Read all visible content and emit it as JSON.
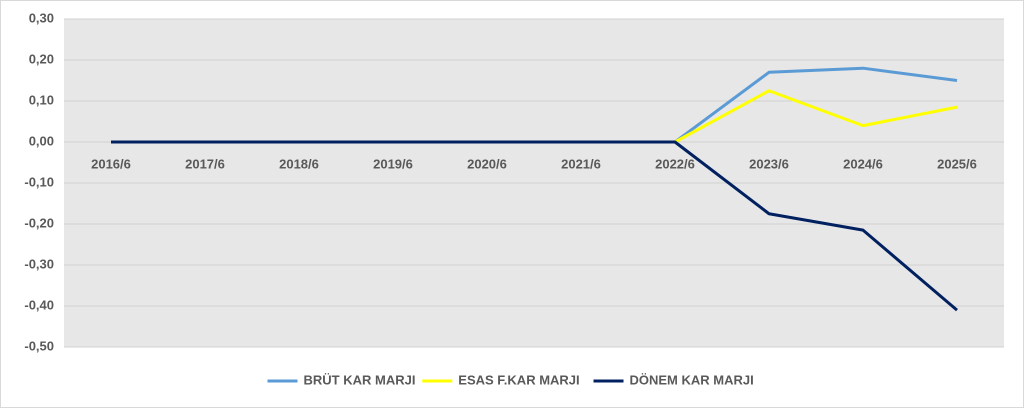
{
  "chart_data": {
    "type": "line",
    "categories": [
      "2016/6",
      "2017/6",
      "2018/6",
      "2019/6",
      "2020/6",
      "2021/6",
      "2022/6",
      "2023/6",
      "2024/6",
      "2025/6"
    ],
    "series": [
      {
        "name": "BRÜT KAR MARJI",
        "color": "#5b9bd5",
        "values": [
          0,
          0,
          0,
          0,
          0,
          0,
          0,
          0.17,
          0.18,
          0.15
        ]
      },
      {
        "name": "ESAS F.KAR MARJI",
        "color": "#ffff00",
        "values": [
          0,
          0,
          0,
          0,
          0,
          0,
          0,
          0.125,
          0.04,
          0.085
        ]
      },
      {
        "name": "DÖNEM KAR MARJI",
        "color": "#002060",
        "values": [
          0,
          0,
          0,
          0,
          0,
          0,
          0,
          -0.175,
          -0.215,
          -0.41
        ]
      }
    ],
    "ylim": [
      -0.5,
      0.3
    ],
    "yticks": [
      {
        "value": 0.3,
        "label": "0,30"
      },
      {
        "value": 0.2,
        "label": "0,20"
      },
      {
        "value": 0.1,
        "label": "0,10"
      },
      {
        "value": 0,
        "label": "0,00"
      },
      {
        "value": -0.1,
        "label": "-0,10"
      },
      {
        "value": -0.2,
        "label": "-0,20"
      },
      {
        "value": -0.3,
        "label": "-0,30"
      },
      {
        "value": -0.4,
        "label": "-0,40"
      },
      {
        "value": -0.5,
        "label": "-0,50"
      }
    ],
    "grid": true,
    "legend": "bottom"
  }
}
